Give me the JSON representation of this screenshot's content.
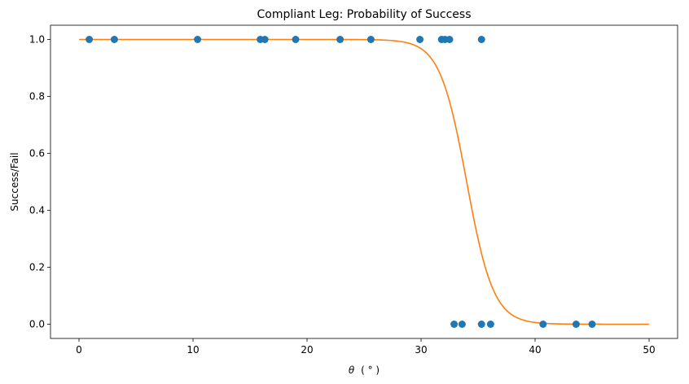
{
  "chart_data": {
    "type": "scatter",
    "title": "Compliant Leg: Probability of Success",
    "xlabel_symbol": "θ",
    "xlabel_unit": "( ° )",
    "ylabel": "Success/Fail",
    "xlim": [
      -2.5,
      52.5
    ],
    "ylim": [
      -0.05,
      1.05
    ],
    "xticks": [
      0,
      10,
      20,
      30,
      40,
      50
    ],
    "yticks": [
      0.0,
      0.2,
      0.4,
      0.6,
      0.8,
      1.0
    ],
    "xtick_labels": [
      "0",
      "10",
      "20",
      "30",
      "40",
      "50"
    ],
    "ytick_labels": [
      "0.0",
      "0.2",
      "0.4",
      "0.6",
      "0.8",
      "1.0"
    ],
    "grid": false,
    "series": [
      {
        "kind": "scatter",
        "color": "#1f77b4",
        "x": [
          0.9,
          3.1,
          10.4,
          15.9,
          16.3,
          19.0,
          22.9,
          25.6,
          29.9,
          31.8,
          32.1,
          32.5,
          35.3,
          32.9,
          33.6,
          35.3,
          36.1,
          40.7,
          43.6,
          45.0
        ],
        "y": [
          1,
          1,
          1,
          1,
          1,
          1,
          1,
          1,
          1,
          1,
          1,
          1,
          1,
          0,
          0,
          0,
          0,
          0,
          0,
          0
        ]
      },
      {
        "kind": "logistic_curve",
        "color": "#ff7f0e",
        "x_range": [
          0,
          50
        ],
        "midpoint": 34.0,
        "steepness": 0.85
      }
    ]
  }
}
